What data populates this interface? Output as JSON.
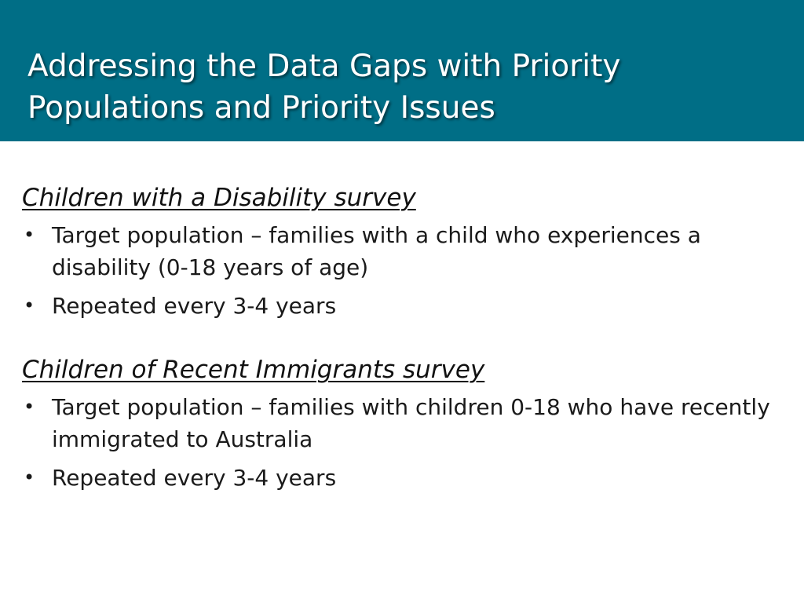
{
  "slide": {
    "title_line1": "Addressing the Data Gaps with Priority",
    "title_line2": "Populations and Priority Issues",
    "sections": [
      {
        "heading": "Children with a Disability survey",
        "bullets": [
          "Target population – families with a child who experiences a disability (0-18 years of age)",
          "Repeated every 3-4 years"
        ]
      },
      {
        "heading": "Children of Recent Immigrants survey",
        "bullets": [
          "Target population – families with children 0-18 who have recently immigrated to Australia",
          "Repeated every 3-4 years"
        ]
      }
    ]
  },
  "colors": {
    "header_background": "#006e86",
    "title_text": "#ffffff"
  }
}
